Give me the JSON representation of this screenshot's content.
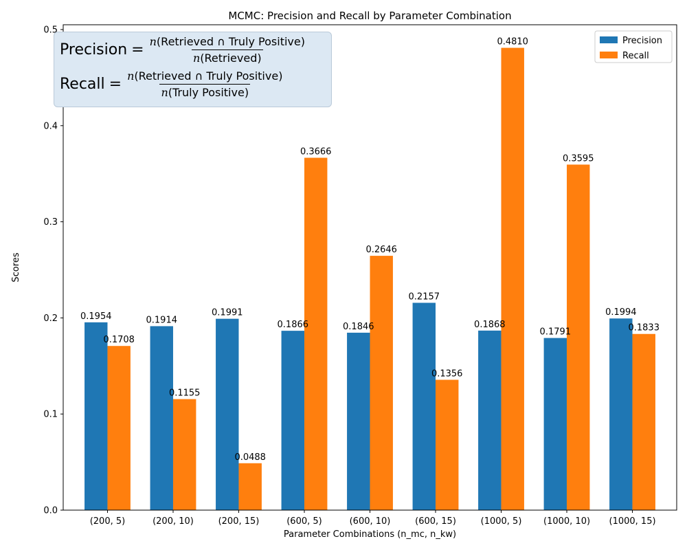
{
  "chart_data": {
    "type": "bar",
    "title": "MCMC: Precision and Recall by Parameter Combination",
    "xlabel": "Parameter Combinations (n_mc, n_kw)",
    "ylabel": "Scores",
    "ylim": [
      0,
      0.505
    ],
    "yticks": [
      0.0,
      0.1,
      0.2,
      0.3,
      0.4,
      0.5
    ],
    "ytick_labels": [
      "0.0",
      "0.1",
      "0.2",
      "0.3",
      "0.4",
      "0.5"
    ],
    "categories": [
      "(200, 5)",
      "(200, 10)",
      "(200, 15)",
      "(600, 5)",
      "(600, 10)",
      "(600, 15)",
      "(1000, 5)",
      "(1000, 10)",
      "(1000, 15)"
    ],
    "series": [
      {
        "name": "Precision",
        "color": "#1f77b4",
        "values": [
          0.1954,
          0.1914,
          0.1991,
          0.1866,
          0.1846,
          0.2157,
          0.1868,
          0.1791,
          0.1994
        ],
        "labels": [
          "0.1954",
          "0.1914",
          "0.1991",
          "0.1866",
          "0.1846",
          "0.2157",
          "0.1868",
          "0.1791",
          "0.1994"
        ]
      },
      {
        "name": "Recall",
        "color": "#ff7f0e",
        "values": [
          0.1708,
          0.1155,
          0.0488,
          0.3666,
          0.2646,
          0.1356,
          0.481,
          0.3595,
          0.1833
        ],
        "labels": [
          "0.1708",
          "0.1155",
          "0.0488",
          "0.3666",
          "0.2646",
          "0.1356",
          "0.4810",
          "0.3595",
          "0.1833"
        ]
      }
    ],
    "legend": "top-right",
    "grid": false
  },
  "annotation": {
    "precision": {
      "lhs": "Precision",
      "eq": "=",
      "num_n": "n",
      "num_text": "(Retrieved ∩ Truly Positive)",
      "den_n": "n",
      "den_text": "(Retrieved)"
    },
    "recall": {
      "lhs": "Recall",
      "eq": "=",
      "num_n": "n",
      "num_text": "(Retrieved ∩ Truly Positive)",
      "den_n": "n",
      "den_text": "(Truly Positive)"
    }
  }
}
